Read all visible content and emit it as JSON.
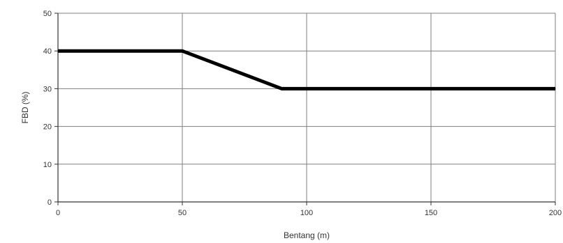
{
  "chart_data": {
    "type": "line",
    "title": "",
    "xlabel": "Bentang (m)",
    "ylabel": "FBD (%)",
    "xlim": [
      0,
      200
    ],
    "ylim": [
      0,
      50
    ],
    "x_ticks": [
      0,
      50,
      100,
      150,
      200
    ],
    "y_ticks": [
      0,
      10,
      20,
      30,
      40,
      50
    ],
    "grid": true,
    "legend": "none",
    "series": [
      {
        "x": [
          0,
          50,
          90,
          200
        ],
        "y": [
          40,
          40,
          30,
          30
        ],
        "color": "#000000"
      }
    ]
  }
}
